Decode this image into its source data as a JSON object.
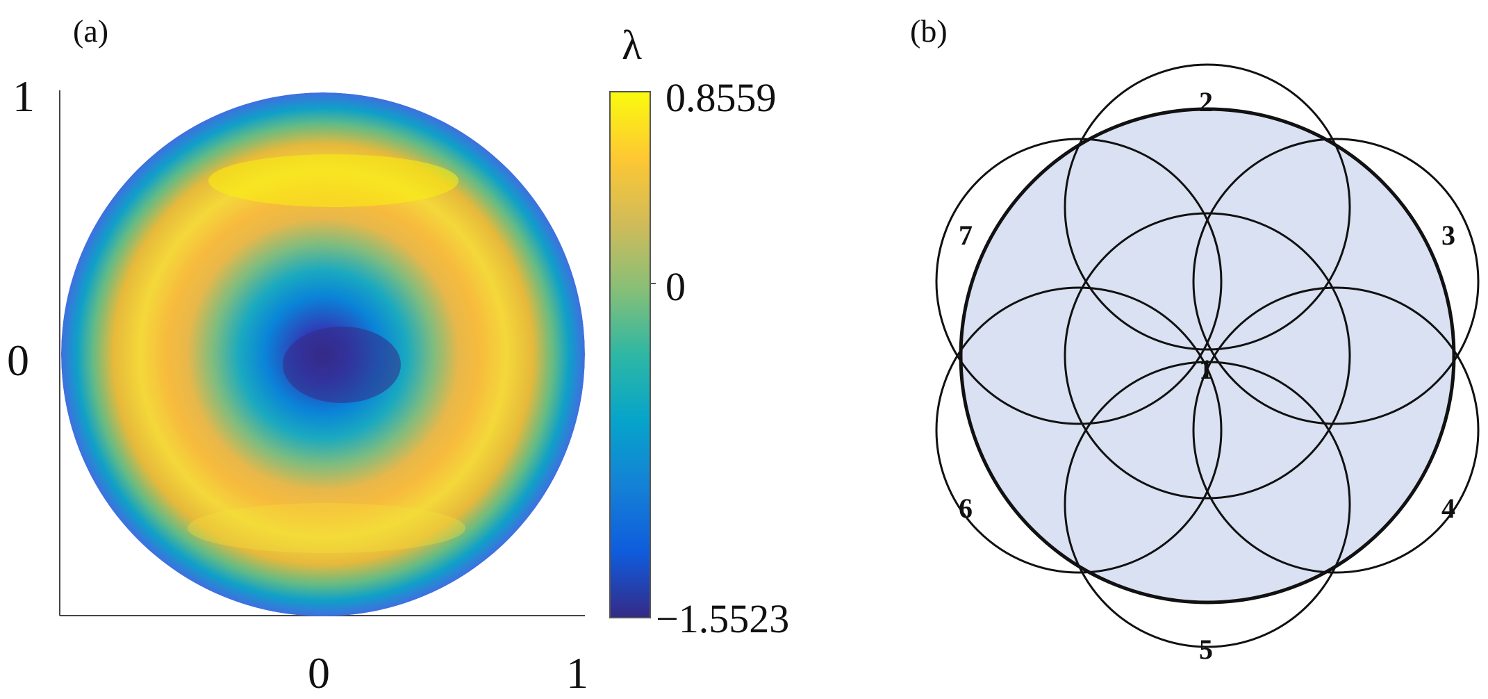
{
  "panel_a": {
    "label": "(a)",
    "axes": {
      "y_ticks": [
        "1",
        "0"
      ],
      "x_ticks": [
        "0",
        "1"
      ]
    },
    "colorbar": {
      "symbol": "λ",
      "max_label": "0.8559",
      "mid_label": "0",
      "min_label": "−1.5523",
      "min_value": -1.5523,
      "max_value": 0.8559,
      "colormap": "parula",
      "colors": [
        "#352a87",
        "#0f5cdd",
        "#1481d6",
        "#06a4ca",
        "#2eb7a4",
        "#87bf77",
        "#d1bb59",
        "#fec832",
        "#f9fb0e"
      ]
    },
    "map_description_values": {
      "center_value": -1.5523,
      "ring_peak_value": 0.8559,
      "edge_value": -0.9
    }
  },
  "panel_b": {
    "label": "(b)",
    "fill_color": "#d9e1f2",
    "stroke_color": "#111111",
    "circles": [
      {
        "id": "1",
        "label": "1"
      },
      {
        "id": "2",
        "label": "2"
      },
      {
        "id": "3",
        "label": "3"
      },
      {
        "id": "4",
        "label": "4"
      },
      {
        "id": "5",
        "label": "5"
      },
      {
        "id": "6",
        "label": "6"
      },
      {
        "id": "7",
        "label": "7"
      }
    ]
  }
}
